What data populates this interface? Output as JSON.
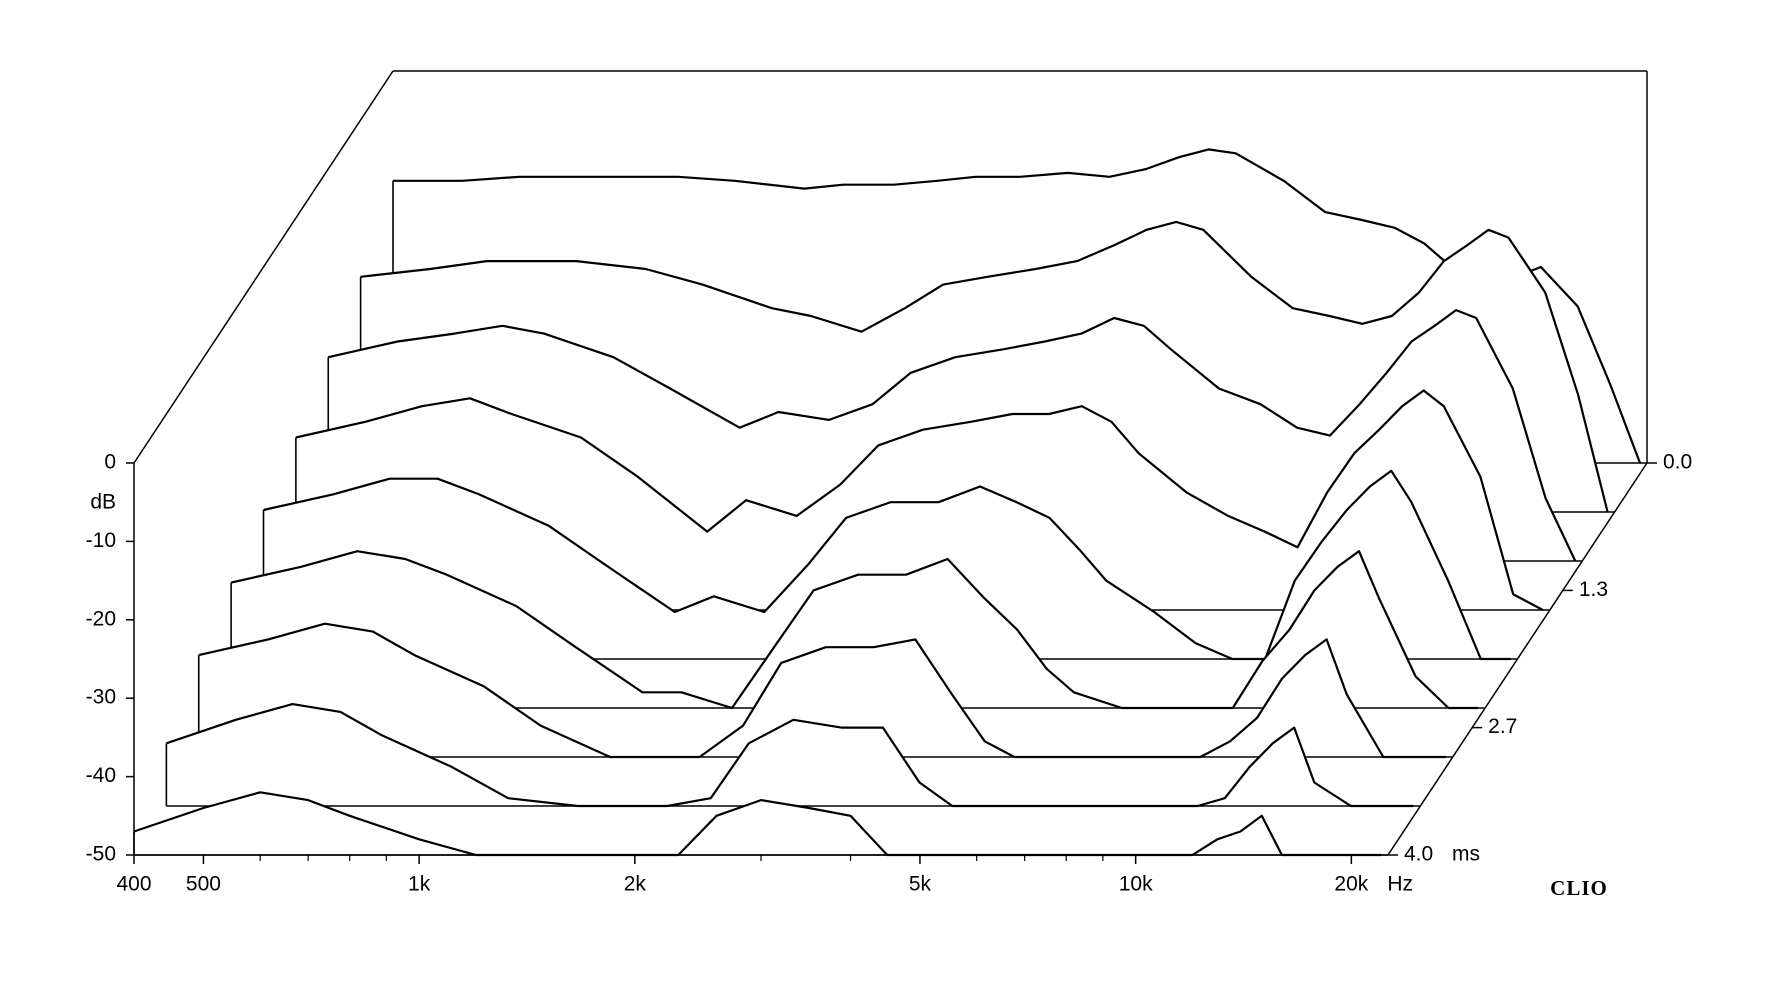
{
  "chart_data": {
    "type": "waterfall",
    "ylabel": "dB",
    "xlabel": "Hz",
    "zlabel": "ms",
    "brand": "CLIO",
    "log_x": true,
    "xlim": [
      400,
      22500
    ],
    "ylim": [
      -50,
      0
    ],
    "zlim": [
      0,
      4
    ],
    "xticks": [
      400,
      500,
      {
        "value": 1000,
        "label": "1k"
      },
      {
        "value": 2000,
        "label": "2k"
      },
      {
        "value": 5000,
        "label": "5k"
      },
      {
        "value": 10000,
        "label": "10k"
      },
      {
        "value": 20000,
        "label": "20k"
      }
    ],
    "xminorticks": [
      600,
      700,
      800,
      900,
      3000,
      4000,
      6000,
      7000,
      8000,
      9000
    ],
    "yticks": [
      0,
      -10,
      -20,
      -30,
      -40,
      -50
    ],
    "zticks": [
      {
        "value": 0,
        "label": "0.0"
      },
      1.3,
      2.7,
      {
        "value": 4,
        "label": "4.0"
      }
    ],
    "color": "#000000",
    "x": [
      400,
      500,
      600,
      700,
      800,
      1000,
      1200,
      1500,
      1700,
      2000,
      2300,
      2600,
      3000,
      3500,
      4000,
      4500,
      5000,
      5500,
      6000,
      7000,
      8000,
      9000,
      10000,
      11000,
      12000,
      13000,
      14000,
      15000,
      16000,
      18000,
      20000,
      22000
    ],
    "series": [
      {
        "time": 0,
        "values": [
          -14,
          -14,
          -13.5,
          -13.5,
          -13.5,
          -13.5,
          -14,
          -15,
          -14.5,
          -14.5,
          -14,
          -13.5,
          -13.5,
          -13,
          -13.5,
          -12.5,
          -11,
          -10,
          -10.5,
          -14,
          -18,
          -19,
          -20,
          -22,
          -25,
          -27,
          -28,
          -26,
          -25,
          -30,
          -40,
          -50
        ]
      },
      {
        "time": 0.5,
        "values": [
          -20,
          -19,
          -18,
          -18,
          -18,
          -19,
          -21,
          -24,
          -25,
          -27,
          -24,
          -21,
          -20,
          -19,
          -18,
          -16,
          -14,
          -13,
          -14,
          -20,
          -24,
          -25,
          -26,
          -25,
          -22,
          -18,
          -16,
          -14,
          -15,
          -22,
          -35,
          -50
        ]
      },
      {
        "time": 1,
        "values": [
          -24,
          -22,
          -21,
          -20,
          -21,
          -24,
          -28,
          -33,
          -31,
          -32,
          -30,
          -26,
          -24,
          -23,
          -22,
          -21,
          -19,
          -20,
          -23,
          -28,
          -30,
          -33,
          -34,
          -30,
          -26,
          -22,
          -20,
          -18,
          -19,
          -28,
          -42,
          -50
        ]
      },
      {
        "time": 1.5,
        "values": [
          -28,
          -26,
          -24,
          -23,
          -25,
          -28,
          -33,
          -40,
          -36,
          -38,
          -34,
          -29,
          -27,
          -26,
          -25,
          -25,
          -24,
          -26,
          -30,
          -35,
          -38,
          -40,
          -42,
          -35,
          -30,
          -27,
          -24,
          -22,
          -24,
          -33,
          -48,
          -50
        ]
      },
      {
        "time": 2,
        "values": [
          -31,
          -29,
          -27,
          -27,
          -29,
          -33,
          -38,
          -44,
          -42,
          -44,
          -38,
          -32,
          -30,
          -30,
          -28,
          -30,
          -32,
          -36,
          -40,
          -44,
          -48,
          -50,
          -50,
          -40,
          -35,
          -31,
          -28,
          -26,
          -30,
          -40,
          -50,
          -50
        ]
      },
      {
        "time": 2.5,
        "values": [
          -34,
          -32,
          -30,
          -31,
          -33,
          -37,
          -42,
          -48,
          -48,
          -50,
          -42,
          -35,
          -33,
          -33,
          -31,
          -36,
          -40,
          -45,
          -48,
          -50,
          -50,
          -50,
          -50,
          -44,
          -40,
          -35,
          -32,
          -30,
          -36,
          -46,
          -50,
          -50
        ]
      },
      {
        "time": 3,
        "values": [
          -37,
          -35,
          -33,
          -34,
          -37,
          -41,
          -46,
          -50,
          -50,
          -50,
          -46,
          -38,
          -36,
          -36,
          -35,
          -42,
          -48,
          -50,
          -50,
          -50,
          -50,
          -50,
          -50,
          -48,
          -45,
          -40,
          -37,
          -35,
          -42,
          -50,
          -50,
          -50
        ]
      },
      {
        "time": 3.5,
        "values": [
          -42,
          -39,
          -37,
          -38,
          -41,
          -45,
          -49,
          -50,
          -50,
          -50,
          -49,
          -42,
          -39,
          -40,
          -40,
          -47,
          -50,
          -50,
          -50,
          -50,
          -50,
          -50,
          -50,
          -50,
          -49,
          -45,
          -42,
          -40,
          -47,
          -50,
          -50,
          -50
        ]
      },
      {
        "time": 4,
        "values": [
          -47,
          -44,
          -42,
          -43,
          -45,
          -48,
          -50,
          -50,
          -50,
          -50,
          -50,
          -45,
          -43,
          -44,
          -45,
          -50,
          -50,
          -50,
          -50,
          -50,
          -50,
          -50,
          -50,
          -50,
          -50,
          -48,
          -47,
          -45,
          -50,
          -50,
          -50,
          -50
        ]
      }
    ]
  }
}
